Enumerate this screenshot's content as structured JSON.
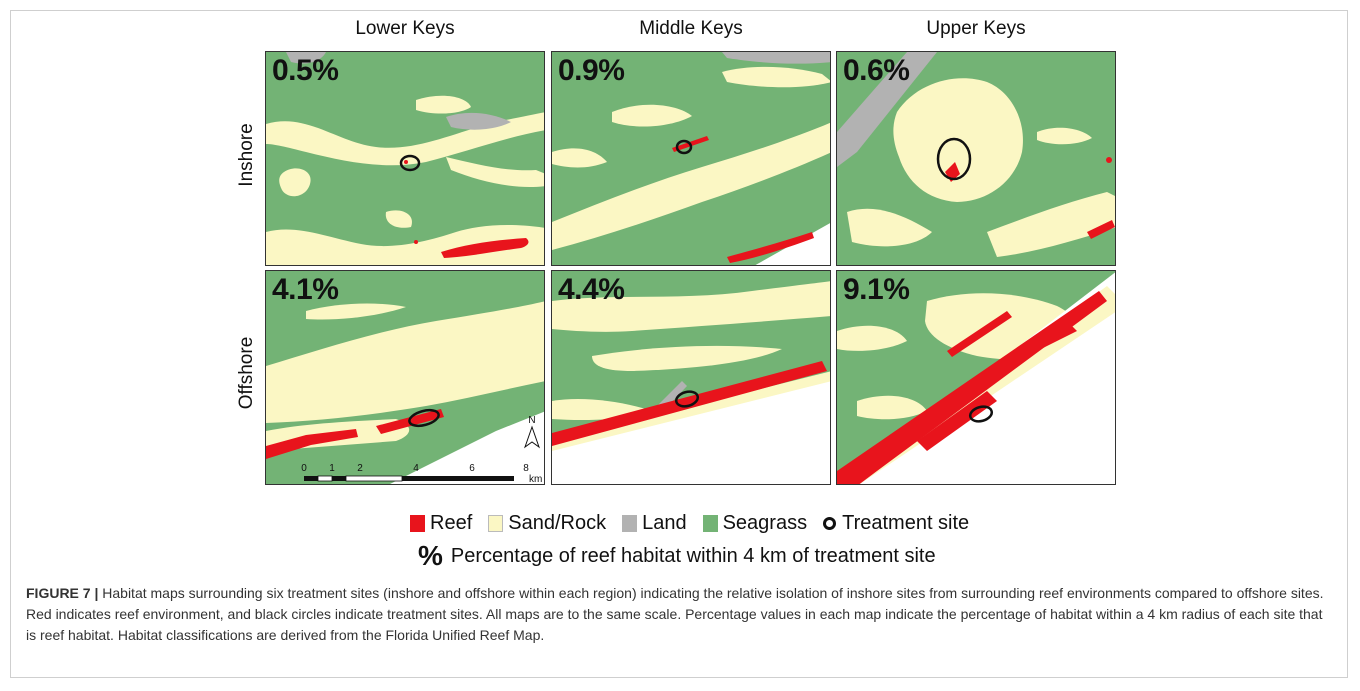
{
  "figure": {
    "columns": [
      "Lower Keys",
      "Middle Keys",
      "Upper Keys"
    ],
    "rows": [
      "Inshore",
      "Offshore"
    ],
    "panels": [
      {
        "region": "Lower Keys",
        "site": "Inshore",
        "percent": "0.5%",
        "reef_percent": 0.5
      },
      {
        "region": "Middle Keys",
        "site": "Inshore",
        "percent": "0.9%",
        "reef_percent": 0.9
      },
      {
        "region": "Upper Keys",
        "site": "Inshore",
        "percent": "0.6%",
        "reef_percent": 0.6
      },
      {
        "region": "Lower Keys",
        "site": "Offshore",
        "percent": "4.1%",
        "reef_percent": 4.1
      },
      {
        "region": "Middle Keys",
        "site": "Offshore",
        "percent": "4.4%",
        "reef_percent": 4.4
      },
      {
        "region": "Upper Keys",
        "site": "Offshore",
        "percent": "9.1%",
        "reef_percent": 9.1
      }
    ],
    "colors": {
      "reef": "#e8141c",
      "sand_rock": "#fbf7c4",
      "land": "#b2b2b2",
      "seagrass": "#73b375",
      "outline": "#111111"
    },
    "scalebar": {
      "ticks": [
        "0",
        "1",
        "2",
        "4",
        "6",
        "8"
      ],
      "unit": "km",
      "north": "N"
    },
    "legend": {
      "items": [
        {
          "label": "Reef",
          "color": "#e8141c",
          "kind": "swatch"
        },
        {
          "label": "Sand/Rock",
          "color": "#fbf7c4",
          "kind": "swatch"
        },
        {
          "label": "Land",
          "color": "#b2b2b2",
          "kind": "swatch"
        },
        {
          "label": "Seagrass",
          "color": "#73b375",
          "kind": "swatch"
        },
        {
          "label": "Treatment site",
          "kind": "ring"
        }
      ],
      "percent_symbol": "%",
      "percent_note": "Percentage of reef habitat within 4 km of treatment site"
    }
  },
  "caption": {
    "label": "FIGURE 7 |",
    "text": "Habitat maps surrounding six treatment sites (inshore and offshore within each region) indicating the relative isolation of inshore sites from surrounding reef environments compared to offshore sites. Red indicates reef environment, and black circles indicate treatment sites. All maps are to the same scale. Percentage values in each map indicate the percentage of habitat within a 4 km radius of each site that is reef habitat. Habitat classifications are derived from the Florida Unified Reef Map."
  }
}
